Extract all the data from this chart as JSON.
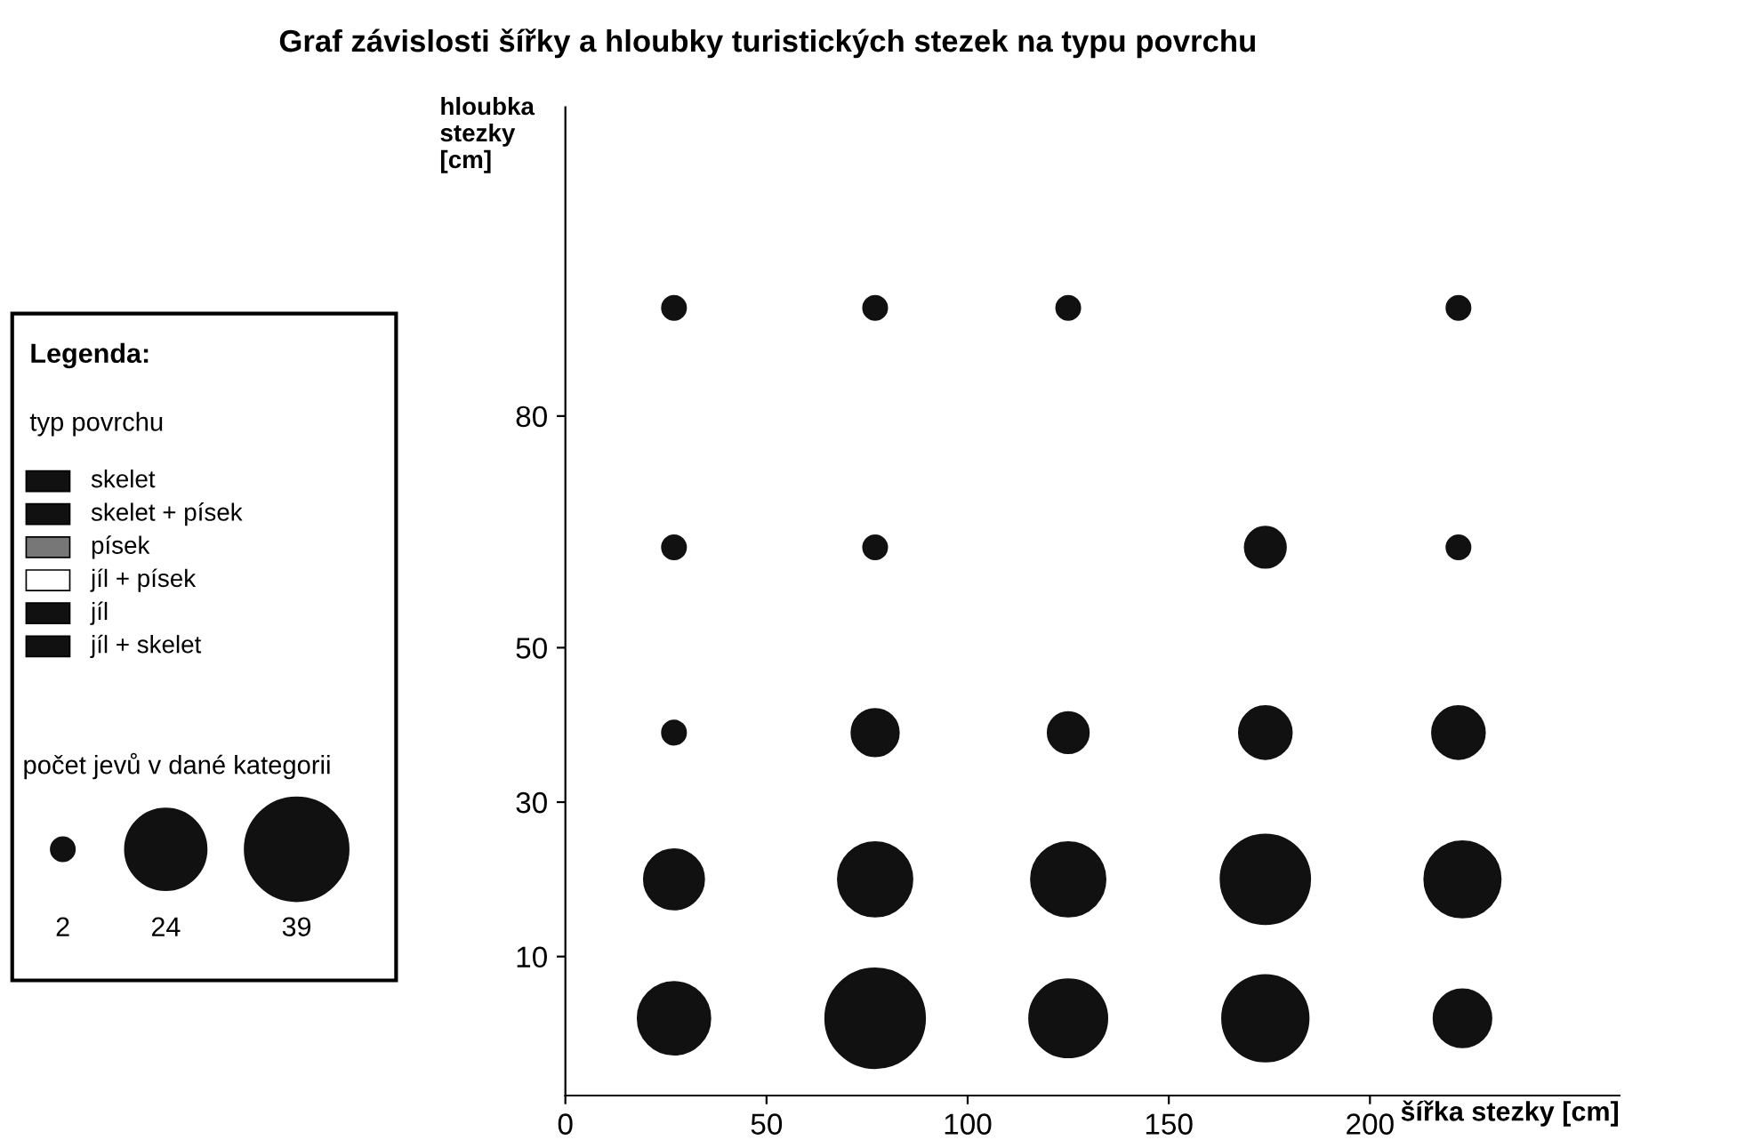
{
  "chart_data": {
    "type": "bubble",
    "title": "Graf závislosti šířky a hloubky turistických stezek na typu povrchu",
    "xlabel": "šířka stezky [cm]",
    "ylabel": "hloubka\nstezky\n[cm]",
    "xlim": [
      0,
      262
    ],
    "xticks": [
      0,
      50,
      100,
      150,
      200
    ],
    "ylim": [
      -8,
      120
    ],
    "yticks": [
      10,
      30,
      50,
      80
    ],
    "series": [
      {
        "color": "#111111",
        "x": [
          27,
          77,
          125,
          222,
          27,
          77,
          174,
          222,
          27,
          77,
          125,
          174,
          222,
          27,
          77,
          125,
          174,
          223,
          27,
          77,
          125,
          174,
          223
        ],
        "values": [
          94,
          94,
          94,
          94,
          63,
          63,
          63,
          63,
          39,
          39,
          39,
          39,
          39,
          20,
          20,
          20,
          20,
          20,
          2,
          2,
          2,
          2,
          2
        ],
        "sizes": [
          2,
          2,
          2,
          2,
          2,
          2,
          6,
          2,
          2,
          8,
          6,
          10,
          10,
          13,
          20,
          20,
          29,
          21,
          19,
          36,
          22,
          27,
          12
        ]
      }
    ],
    "size_legend": [
      2,
      24,
      39
    ],
    "legend_title": "Legenda:",
    "annotations": [
      "typ povrchu",
      "skelet",
      "skelet + písek",
      "písek",
      "jíl + písek",
      "jíl",
      "jíl + skelet",
      "počet jevů v dané kategorii"
    ],
    "grid": false
  }
}
